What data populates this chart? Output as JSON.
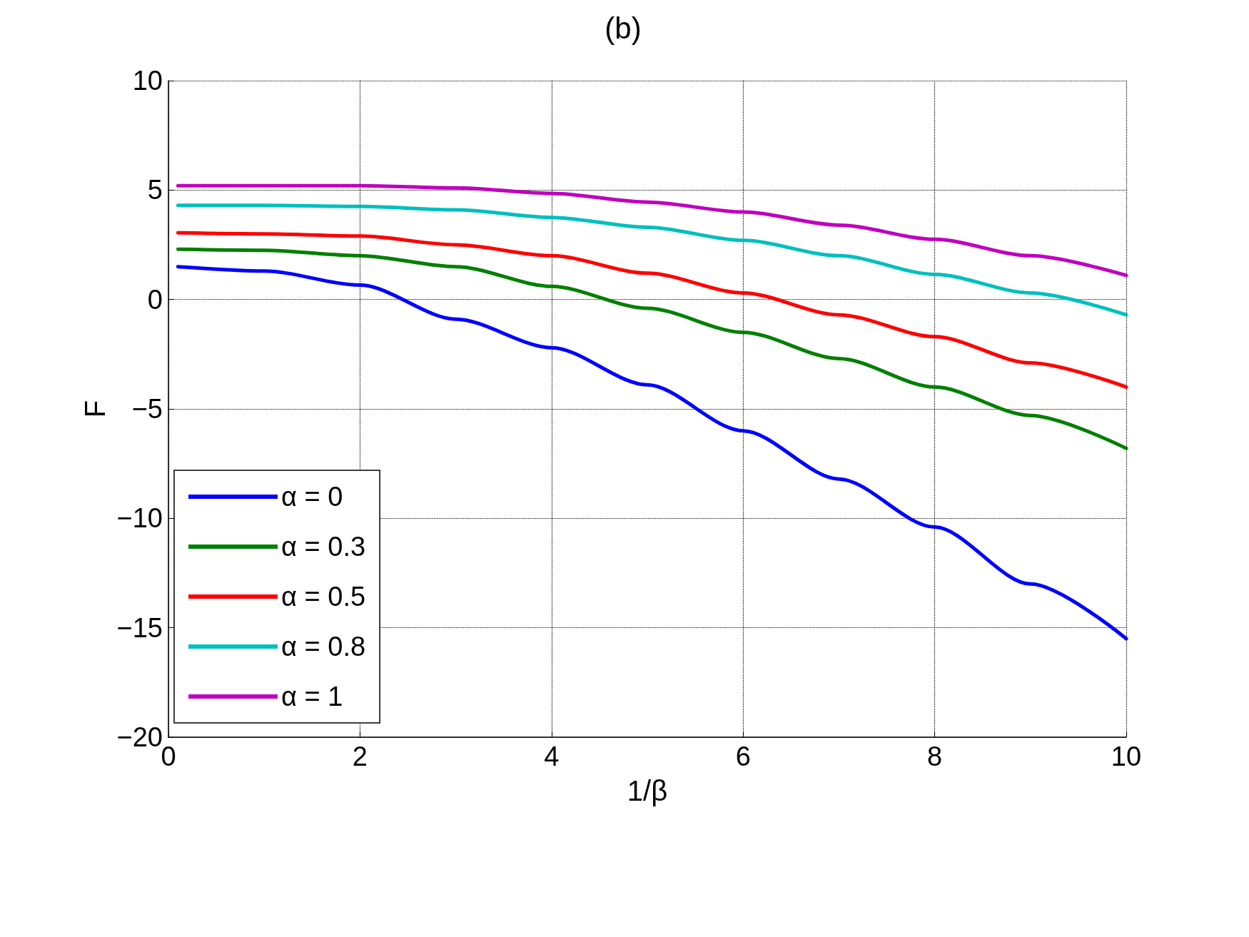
{
  "chart_data": {
    "type": "line",
    "title": "(b)",
    "xlabel": "1/β",
    "ylabel": "F",
    "x": [
      0.1,
      1,
      2,
      3,
      4,
      5,
      6,
      7,
      8,
      9,
      10
    ],
    "series": [
      {
        "name": "α = 0",
        "color": "#0000ff",
        "values": [
          1.5,
          1.3,
          0.66,
          -0.9,
          -2.2,
          -3.9,
          -6.0,
          -8.2,
          -10.4,
          -13.0,
          -15.5
        ]
      },
      {
        "name": "α = 0.3",
        "color": "#008000",
        "values": [
          2.3,
          2.25,
          2.0,
          1.5,
          0.6,
          -0.4,
          -1.5,
          -2.7,
          -4.0,
          -5.3,
          -6.8
        ]
      },
      {
        "name": "α = 0.5",
        "color": "#ff0000",
        "values": [
          3.05,
          3.0,
          2.9,
          2.5,
          2.0,
          1.2,
          0.3,
          -0.7,
          -1.7,
          -2.9,
          -4.0
        ]
      },
      {
        "name": "α = 0.8",
        "color": "#00bfbf",
        "values": [
          4.3,
          4.3,
          4.25,
          4.1,
          3.75,
          3.3,
          2.7,
          2.0,
          1.15,
          0.3,
          -0.7
        ]
      },
      {
        "name": "α = 1",
        "color": "#bf00bf",
        "values": [
          5.2,
          5.2,
          5.2,
          5.1,
          4.85,
          4.45,
          4.0,
          3.4,
          2.75,
          2.0,
          1.1
        ]
      }
    ],
    "xlim": [
      0,
      10
    ],
    "xticks": [
      0,
      2,
      4,
      6,
      8,
      10
    ],
    "ylim": [
      -20,
      10
    ],
    "yticks": [
      -20,
      -15,
      -10,
      -5,
      0,
      5,
      10
    ],
    "grid": true,
    "legend": "bottom left",
    "marker": "none",
    "line_style": "solid"
  }
}
